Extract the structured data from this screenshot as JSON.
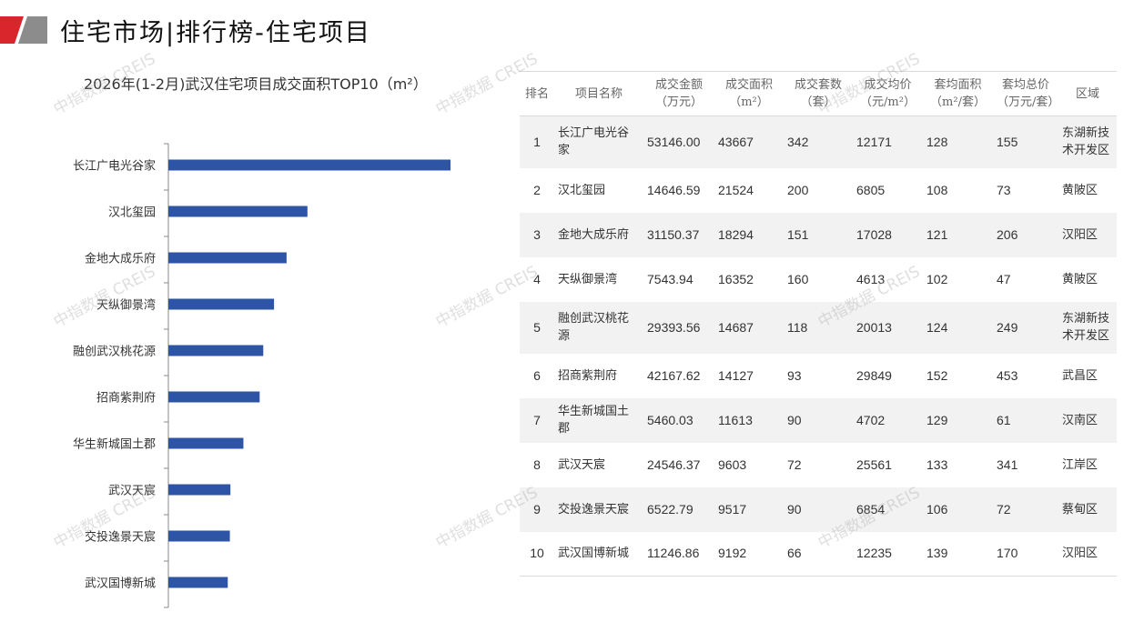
{
  "header": {
    "title": "住宅市场|排行榜-住宅项目",
    "logo_colors": [
      "#d9262c",
      "#8c8c8c"
    ]
  },
  "watermark": "中指数据 CREIS",
  "chart_data": {
    "type": "bar",
    "orientation": "horizontal",
    "title": "2026年(1-2月)武汉住宅项目成交面积TOP10（m²）",
    "categories": [
      "长江广电光谷家",
      "汉北玺园",
      "金地大成乐府",
      "天纵御景湾",
      "融创武汉桃花源",
      "招商紫荆府",
      "华生新城国土郡",
      "武汉天宸",
      "交投逸景天宸",
      "武汉国博新城"
    ],
    "values": [
      43667,
      21524,
      18294,
      16352,
      14687,
      14127,
      11613,
      9603,
      9517,
      9192
    ],
    "xlim": [
      0,
      45000
    ],
    "bar_color": "#2e54a6",
    "grid": false
  },
  "table": {
    "headers": [
      [
        "排名"
      ],
      [
        "项目名称"
      ],
      [
        "成交金额",
        "（万元）"
      ],
      [
        "成交面积",
        "（m²）"
      ],
      [
        "成交套数",
        "（套）"
      ],
      [
        "成交均价",
        "（元/m²）"
      ],
      [
        "套均面积",
        "（m²/套）"
      ],
      [
        "套均总价",
        "（万元/套）"
      ],
      [
        "区域"
      ]
    ],
    "rows": [
      [
        "1",
        "长江广电光谷家",
        "53146.00",
        "43667",
        "342",
        "12171",
        "128",
        "155",
        "东湖新技术开发区"
      ],
      [
        "2",
        "汉北玺园",
        "14646.59",
        "21524",
        "200",
        "6805",
        "108",
        "73",
        "黄陂区"
      ],
      [
        "3",
        "金地大成乐府",
        "31150.37",
        "18294",
        "151",
        "17028",
        "121",
        "206",
        "汉阳区"
      ],
      [
        "4",
        "天纵御景湾",
        "7543.94",
        "16352",
        "160",
        "4613",
        "102",
        "47",
        "黄陂区"
      ],
      [
        "5",
        "融创武汉桃花源",
        "29393.56",
        "14687",
        "118",
        "20013",
        "124",
        "249",
        "东湖新技术开发区"
      ],
      [
        "6",
        "招商紫荆府",
        "42167.62",
        "14127",
        "93",
        "29849",
        "152",
        "453",
        "武昌区"
      ],
      [
        "7",
        "华生新城国土郡",
        "5460.03",
        "11613",
        "90",
        "4702",
        "129",
        "61",
        "汉南区"
      ],
      [
        "8",
        "武汉天宸",
        "24546.37",
        "9603",
        "72",
        "25561",
        "133",
        "341",
        "江岸区"
      ],
      [
        "9",
        "交投逸景天宸",
        "6522.79",
        "9517",
        "90",
        "6854",
        "106",
        "72",
        "蔡甸区"
      ],
      [
        "10",
        "武汉国博新城",
        "11246.86",
        "9192",
        "66",
        "12235",
        "139",
        "170",
        "汉阳区"
      ]
    ]
  }
}
